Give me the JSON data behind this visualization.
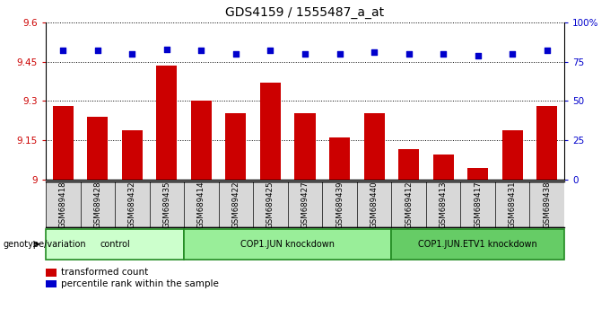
{
  "title": "GDS4159 / 1555487_a_at",
  "samples": [
    "GSM689418",
    "GSM689428",
    "GSM689432",
    "GSM689435",
    "GSM689414",
    "GSM689422",
    "GSM689425",
    "GSM689427",
    "GSM689439",
    "GSM689440",
    "GSM689412",
    "GSM689413",
    "GSM689417",
    "GSM689431",
    "GSM689438"
  ],
  "bar_values": [
    9.28,
    9.24,
    9.19,
    9.435,
    9.3,
    9.255,
    9.37,
    9.255,
    9.16,
    9.255,
    9.115,
    9.095,
    9.045,
    9.19,
    9.28
  ],
  "dot_values": [
    82,
    82,
    80,
    83,
    82,
    80,
    82,
    80,
    80,
    81,
    80,
    80,
    79,
    80,
    82
  ],
  "bar_color": "#cc0000",
  "dot_color": "#0000cc",
  "ylim_left": [
    9.0,
    9.6
  ],
  "ylim_right": [
    0,
    100
  ],
  "yticks_left": [
    9.0,
    9.15,
    9.3,
    9.45,
    9.6
  ],
  "yticks_right": [
    0,
    25,
    50,
    75,
    100
  ],
  "ytick_labels_left": [
    "9",
    "9.15",
    "9.3",
    "9.45",
    "9.6"
  ],
  "ytick_labels_right": [
    "0",
    "25",
    "50",
    "75",
    "100%"
  ],
  "groups": [
    {
      "label": "control",
      "start": 0,
      "end": 3,
      "color": "#ccffcc"
    },
    {
      "label": "COP1.JUN knockdown",
      "start": 4,
      "end": 9,
      "color": "#99ee99"
    },
    {
      "label": "COP1.JUN.ETV1 knockdown",
      "start": 10,
      "end": 14,
      "color": "#66cc66"
    }
  ],
  "xlabel_genotype": "genotype/variation",
  "legend_bar_label": "transformed count",
  "legend_dot_label": "percentile rank within the sample",
  "title_fontsize": 10,
  "tick_fontsize": 7.5,
  "bar_width": 0.6,
  "background_color": "#ffffff",
  "tick_color_left": "#cc0000",
  "tick_color_right": "#0000cc",
  "sample_bg_color": "#d8d8d8"
}
